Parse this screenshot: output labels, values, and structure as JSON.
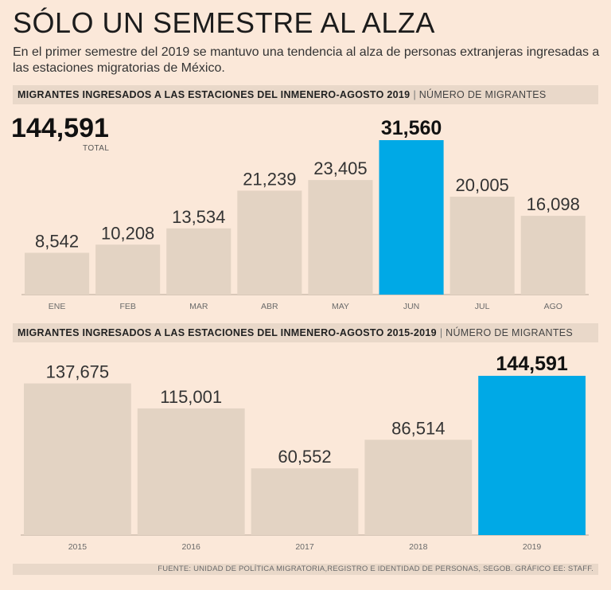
{
  "header": {
    "title": "SÓLO UN SEMESTRE AL ALZA",
    "subtitle": "En el primer semestre del 2019 se mantuvo una tendencia al alza de personas extranjeras ingresadas a las estaciones migratorias de México."
  },
  "section1": {
    "heading": "MIGRANTES INGRESADOS A LAS ESTACIONES DEL INMENERO-AGOSTO 2019",
    "separator": "|",
    "unit": "NÚMERO DE MIGRANTES",
    "total_value": "144,591",
    "total_label": "TOTAL"
  },
  "section2": {
    "heading": "MIGRANTES INGRESADOS A LAS ESTACIONES DEL INMENERO-AGOSTO 2015-2019",
    "separator": "|",
    "unit": "NÚMERO DE MIGRANTES"
  },
  "footer": {
    "source": "FUENTE: UNIDAD DE POLÍTICA MIGRATORIA,REGISTRO E IDENTIDAD DE PERSONAS, SEGOB. GRÁFICO EE: STAFF."
  },
  "colors": {
    "bar": "#e3d3c3",
    "highlight": "#00a9e6",
    "axis": "#b7a899",
    "tick_text": "#6a6a6a",
    "value_text": "#333333"
  },
  "chart_data": [
    {
      "type": "bar",
      "title": "MIGRANTES INGRESADOS A LAS ESTACIONES DEL INMENERO-AGOSTO 2019",
      "ylabel": "NÚMERO DE MIGRANTES",
      "categories": [
        "ENE",
        "FEB",
        "MAR",
        "ABR",
        "MAY",
        "JUN",
        "JUL",
        "AGO"
      ],
      "values": [
        8542,
        10208,
        13534,
        21239,
        23405,
        31560,
        20005,
        16098
      ],
      "labels": [
        "8,542",
        "10,208",
        "13,534",
        "21,239",
        "23,405",
        "31,560",
        "20,005",
        "16,098"
      ],
      "highlight": "JUN",
      "ylim": [
        0,
        31560
      ]
    },
    {
      "type": "bar",
      "title": "MIGRANTES INGRESADOS A LAS ESTACIONES DEL INMENERO-AGOSTO 2015-2019",
      "ylabel": "NÚMERO DE MIGRANTES",
      "categories": [
        "2015",
        "2016",
        "2017",
        "2018",
        "2019"
      ],
      "values": [
        137675,
        115001,
        60552,
        86514,
        144591
      ],
      "labels": [
        "137,675",
        "115,001",
        "60,552",
        "86,514",
        "144,591"
      ],
      "highlight": "2019",
      "ylim": [
        0,
        144591
      ]
    }
  ]
}
